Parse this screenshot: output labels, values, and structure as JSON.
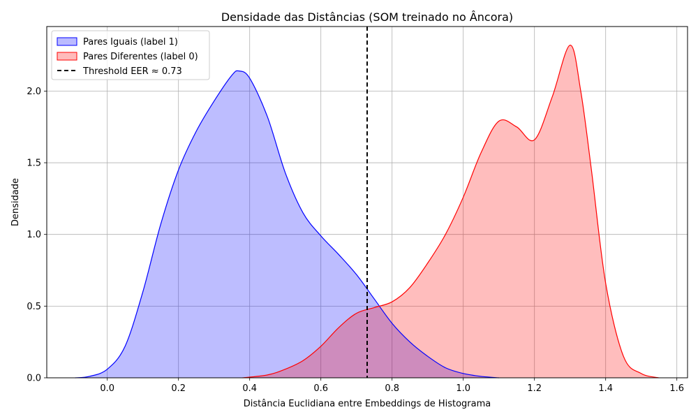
{
  "chart_data": {
    "type": "area",
    "title": "Densidade das Distâncias (SOM treinado no Âncora)",
    "xlabel": "Distância Euclidiana entre Embeddings de Histograma",
    "ylabel": "Densidade",
    "xlim": [
      -0.17,
      1.63
    ],
    "ylim": [
      0,
      2.45
    ],
    "x_ticks": [
      "0.0",
      "0.2",
      "0.4",
      "0.6",
      "0.8",
      "1.0",
      "1.2",
      "1.4",
      "1.6"
    ],
    "y_ticks": [
      "0.0",
      "0.5",
      "1.0",
      "1.5",
      "2.0"
    ],
    "grid": true,
    "legend_position": "top-left",
    "series": [
      {
        "name": "Pares Iguais (label 1)",
        "color": "#0000ff",
        "fill": "#bbbbff",
        "x": [
          -0.09,
          -0.05,
          0.0,
          0.05,
          0.1,
          0.15,
          0.2,
          0.25,
          0.3,
          0.35,
          0.37,
          0.4,
          0.45,
          0.5,
          0.55,
          0.6,
          0.65,
          0.7,
          0.75,
          0.8,
          0.85,
          0.9,
          0.95,
          1.0,
          1.05,
          1.1
        ],
        "y": [
          0.0,
          0.01,
          0.06,
          0.22,
          0.6,
          1.07,
          1.45,
          1.72,
          1.93,
          2.11,
          2.14,
          2.09,
          1.82,
          1.43,
          1.15,
          0.99,
          0.86,
          0.72,
          0.55,
          0.38,
          0.25,
          0.15,
          0.07,
          0.03,
          0.01,
          0.0
        ]
      },
      {
        "name": "Pares Diferentes (label 0)",
        "color": "#ff0000",
        "fill": "#ffbbbb",
        "x": [
          0.38,
          0.45,
          0.5,
          0.55,
          0.6,
          0.65,
          0.7,
          0.75,
          0.8,
          0.85,
          0.9,
          0.95,
          1.0,
          1.05,
          1.1,
          1.15,
          1.2,
          1.25,
          1.3,
          1.33,
          1.36,
          1.4,
          1.45,
          1.5,
          1.55
        ],
        "y": [
          0.0,
          0.02,
          0.06,
          0.12,
          0.22,
          0.35,
          0.45,
          0.49,
          0.53,
          0.63,
          0.8,
          1.0,
          1.26,
          1.57,
          1.79,
          1.75,
          1.66,
          1.96,
          2.32,
          2.0,
          1.45,
          0.66,
          0.15,
          0.03,
          0.0
        ]
      }
    ],
    "threshold": {
      "name": "Threshold EER ≈ 0.73",
      "x": 0.73,
      "color": "#000000",
      "style": "dashed"
    }
  }
}
